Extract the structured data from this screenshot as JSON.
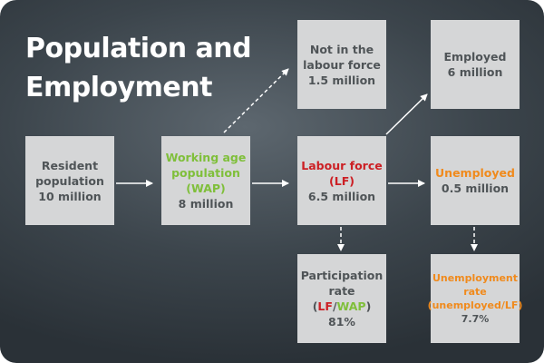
{
  "title": {
    "line1": "Population and",
    "line2": "Employment"
  },
  "boxes": {
    "resident": {
      "line1": "Resident",
      "line2": "population",
      "line3": "10 million"
    },
    "wap": {
      "line1": "Working age",
      "line2": "population",
      "line3": "(WAP)",
      "line4": "8 million"
    },
    "not_in_lf": {
      "line1": "Not in the",
      "line2": "labour force",
      "line3": "1.5 million"
    },
    "labour_force": {
      "line1": "Labour force",
      "line2": "(LF)",
      "line3": "6.5 million"
    },
    "employed": {
      "line1": "Employed",
      "line2": "6 million"
    },
    "unemployed": {
      "line1": "Unemployed",
      "line2": "0.5 million"
    },
    "participation": {
      "line1": "Participation",
      "line2": "rate",
      "open": "(",
      "lf": "LF",
      "slash": "/",
      "wap": "WAP",
      "close": ")",
      "value": "81%"
    },
    "unemployment_rate": {
      "line1": "Unemployment",
      "line2": "rate",
      "line3": "(unemployed/LF)",
      "value": "7.7%"
    }
  },
  "colors": {
    "background": "#3c454c",
    "box_fill": "#d5d6d7",
    "box_text": "#4f5457",
    "wap_green": "#7fbf3a",
    "labour_force_red": "#cc1f24",
    "unemployed_orange": "#f08a1c",
    "arrow": "#ffffff"
  }
}
